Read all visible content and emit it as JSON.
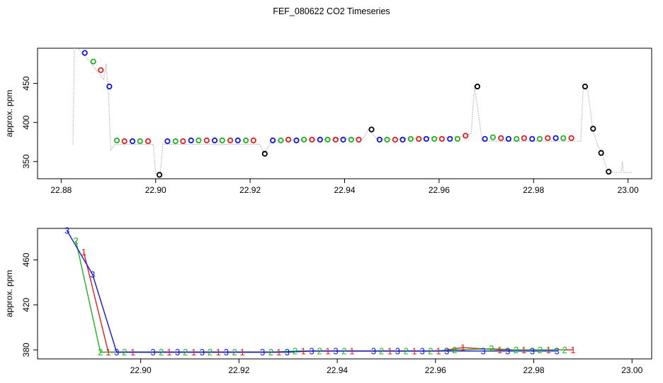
{
  "title": "FEF_080622  CO2 Timeseries",
  "chart_data": [
    {
      "type": "scatter",
      "title": "",
      "xlabel": "",
      "ylabel": "approx. ppm",
      "xlim": [
        22.875,
        23.005
      ],
      "ylim": [
        328,
        495
      ],
      "xticks": [
        "22.88",
        "22.90",
        "22.92",
        "22.94",
        "22.96",
        "22.98",
        "23.00"
      ],
      "xtick_values": [
        22.88,
        22.9,
        22.92,
        22.94,
        22.96,
        22.98,
        23.0
      ],
      "yticks": [
        "350",
        "400",
        "450"
      ],
      "ytick_values": [
        350,
        400,
        450
      ],
      "grid": false,
      "colors": {
        "red": "#df1f1f",
        "green": "#22b022",
        "blue": "#1515d6",
        "black": "#000000",
        "trace": "#b4b4b4"
      },
      "trace": [
        [
          22.8825,
          372
        ],
        [
          22.8828,
          500
        ],
        [
          22.886,
          478
        ],
        [
          22.889,
          455
        ],
        [
          22.8895,
          475
        ],
        [
          22.89,
          440
        ],
        [
          22.8905,
          365
        ],
        [
          22.8915,
          372
        ],
        [
          22.8995,
          372
        ],
        [
          22.9,
          335
        ],
        [
          22.901,
          335
        ],
        [
          22.9015,
          372
        ],
        [
          22.922,
          372
        ],
        [
          22.923,
          360
        ],
        [
          22.9245,
          376
        ],
        [
          22.944,
          380
        ],
        [
          22.945,
          391
        ],
        [
          22.947,
          378
        ],
        [
          22.9655,
          382
        ],
        [
          22.9668,
          386
        ],
        [
          22.9675,
          446
        ],
        [
          22.969,
          382
        ],
        [
          22.969,
          376
        ],
        [
          22.99,
          376
        ],
        [
          22.9905,
          446
        ],
        [
          22.9915,
          440
        ],
        [
          22.9925,
          392
        ],
        [
          22.9935,
          372
        ],
        [
          22.9945,
          360
        ],
        [
          22.9955,
          340
        ],
        [
          22.9962,
          336
        ],
        [
          22.9985,
          336
        ],
        [
          22.9988,
          350
        ],
        [
          22.999,
          336
        ],
        [
          23.001,
          336
        ]
      ],
      "points": [
        {
          "x": 22.885,
          "y": 489,
          "c": "blue"
        },
        {
          "x": 22.8868,
          "y": 478,
          "c": "green"
        },
        {
          "x": 22.8884,
          "y": 467,
          "c": "red"
        },
        {
          "x": 22.8902,
          "y": 446,
          "c": "blue"
        },
        {
          "x": 22.8918,
          "y": 377,
          "c": "green"
        },
        {
          "x": 22.8934,
          "y": 376,
          "c": "red"
        },
        {
          "x": 22.8951,
          "y": 376,
          "c": "blue"
        },
        {
          "x": 22.8967,
          "y": 376,
          "c": "green"
        },
        {
          "x": 22.8984,
          "y": 376,
          "c": "red"
        },
        {
          "x": 22.9008,
          "y": 333,
          "c": "black"
        },
        {
          "x": 22.9025,
          "y": 376,
          "c": "blue"
        },
        {
          "x": 22.9042,
          "y": 376,
          "c": "green"
        },
        {
          "x": 22.9058,
          "y": 376,
          "c": "red"
        },
        {
          "x": 22.9075,
          "y": 377,
          "c": "blue"
        },
        {
          "x": 22.9091,
          "y": 377,
          "c": "green"
        },
        {
          "x": 22.9108,
          "y": 377,
          "c": "red"
        },
        {
          "x": 22.9125,
          "y": 377,
          "c": "blue"
        },
        {
          "x": 22.9141,
          "y": 377,
          "c": "green"
        },
        {
          "x": 22.9158,
          "y": 377,
          "c": "red"
        },
        {
          "x": 22.9174,
          "y": 377,
          "c": "blue"
        },
        {
          "x": 22.9191,
          "y": 377,
          "c": "green"
        },
        {
          "x": 22.9207,
          "y": 377,
          "c": "red"
        },
        {
          "x": 22.9231,
          "y": 360,
          "c": "black"
        },
        {
          "x": 22.9248,
          "y": 377,
          "c": "blue"
        },
        {
          "x": 22.9265,
          "y": 377,
          "c": "green"
        },
        {
          "x": 22.9281,
          "y": 378,
          "c": "red"
        },
        {
          "x": 22.9298,
          "y": 377,
          "c": "blue"
        },
        {
          "x": 22.9314,
          "y": 378,
          "c": "green"
        },
        {
          "x": 22.9331,
          "y": 378,
          "c": "red"
        },
        {
          "x": 22.9348,
          "y": 378,
          "c": "blue"
        },
        {
          "x": 22.9364,
          "y": 378,
          "c": "green"
        },
        {
          "x": 22.9381,
          "y": 378,
          "c": "red"
        },
        {
          "x": 22.9397,
          "y": 378,
          "c": "blue"
        },
        {
          "x": 22.9414,
          "y": 378,
          "c": "green"
        },
        {
          "x": 22.943,
          "y": 378,
          "c": "red"
        },
        {
          "x": 22.9457,
          "y": 391,
          "c": "black"
        },
        {
          "x": 22.9474,
          "y": 378,
          "c": "blue"
        },
        {
          "x": 22.949,
          "y": 378,
          "c": "green"
        },
        {
          "x": 22.9507,
          "y": 378,
          "c": "red"
        },
        {
          "x": 22.9523,
          "y": 378,
          "c": "blue"
        },
        {
          "x": 22.954,
          "y": 379,
          "c": "green"
        },
        {
          "x": 22.9557,
          "y": 379,
          "c": "red"
        },
        {
          "x": 22.9573,
          "y": 379,
          "c": "blue"
        },
        {
          "x": 22.959,
          "y": 379,
          "c": "green"
        },
        {
          "x": 22.9606,
          "y": 379,
          "c": "red"
        },
        {
          "x": 22.9623,
          "y": 379,
          "c": "blue"
        },
        {
          "x": 22.9639,
          "y": 379,
          "c": "green"
        },
        {
          "x": 22.9656,
          "y": 383,
          "c": "red"
        },
        {
          "x": 22.9681,
          "y": 446,
          "c": "black"
        },
        {
          "x": 22.9697,
          "y": 379,
          "c": "blue"
        },
        {
          "x": 22.9714,
          "y": 381,
          "c": "green"
        },
        {
          "x": 22.9731,
          "y": 380,
          "c": "red"
        },
        {
          "x": 22.9747,
          "y": 379,
          "c": "blue"
        },
        {
          "x": 22.9764,
          "y": 379,
          "c": "green"
        },
        {
          "x": 22.978,
          "y": 380,
          "c": "red"
        },
        {
          "x": 22.9797,
          "y": 379,
          "c": "blue"
        },
        {
          "x": 22.9813,
          "y": 379,
          "c": "green"
        },
        {
          "x": 22.983,
          "y": 380,
          "c": "red"
        },
        {
          "x": 22.9847,
          "y": 380,
          "c": "blue"
        },
        {
          "x": 22.9863,
          "y": 380,
          "c": "green"
        },
        {
          "x": 22.988,
          "y": 380,
          "c": "red"
        },
        {
          "x": 22.9909,
          "y": 446,
          "c": "black"
        },
        {
          "x": 22.9926,
          "y": 392,
          "c": "black"
        },
        {
          "x": 22.9943,
          "y": 361,
          "c": "black"
        },
        {
          "x": 22.9959,
          "y": 337,
          "c": "black"
        }
      ]
    },
    {
      "type": "line",
      "title": "",
      "xlabel": "",
      "ylabel": "approx. ppm",
      "xlim": [
        22.879,
        23.004
      ],
      "ylim": [
        372,
        488
      ],
      "xticks": [
        "22.90",
        "22.92",
        "22.94",
        "22.96",
        "22.98",
        "23.00"
      ],
      "xtick_values": [
        22.9,
        22.92,
        22.94,
        22.96,
        22.98,
        23.0
      ],
      "yticks": [
        "380",
        "420",
        "460"
      ],
      "ytick_values": [
        380,
        420,
        460
      ],
      "grid": false,
      "series": [
        {
          "name": "1",
          "color": "#df1f1f",
          "x": [
            22.8884,
            22.8934,
            22.8984,
            22.9058,
            22.9108,
            22.9158,
            22.9207,
            22.9281,
            22.9331,
            22.9381,
            22.943,
            22.9507,
            22.9557,
            22.9606,
            22.9656,
            22.9731,
            22.978,
            22.983,
            22.988
          ],
          "y": [
            467,
            378,
            378,
            378,
            378,
            378,
            378,
            378,
            379,
            379,
            379,
            379,
            379,
            379,
            382,
            380,
            380,
            380,
            380
          ]
        },
        {
          "name": "2",
          "color": "#22b022",
          "x": [
            22.8868,
            22.8918,
            22.8967,
            22.9042,
            22.9091,
            22.9141,
            22.9191,
            22.9265,
            22.9314,
            22.9364,
            22.9414,
            22.949,
            22.954,
            22.959,
            22.9639,
            22.9714,
            22.9764,
            22.9813,
            22.9863
          ],
          "y": [
            477,
            378,
            378,
            378,
            378,
            378,
            378,
            378,
            379,
            379,
            379,
            379,
            379,
            379,
            380,
            381,
            380,
            380,
            380
          ]
        },
        {
          "name": "3",
          "color": "#1515d6",
          "x": [
            22.885,
            22.8902,
            22.8951,
            22.9025,
            22.9075,
            22.9125,
            22.9174,
            22.9248,
            22.9298,
            22.9348,
            22.9397,
            22.9474,
            22.9523,
            22.9573,
            22.9623,
            22.9697,
            22.9747,
            22.9797,
            22.9847
          ],
          "y": [
            486,
            447,
            378,
            378,
            378,
            378,
            378,
            378,
            378,
            379,
            379,
            379,
            379,
            379,
            379,
            379,
            379,
            379,
            379
          ]
        }
      ]
    }
  ]
}
